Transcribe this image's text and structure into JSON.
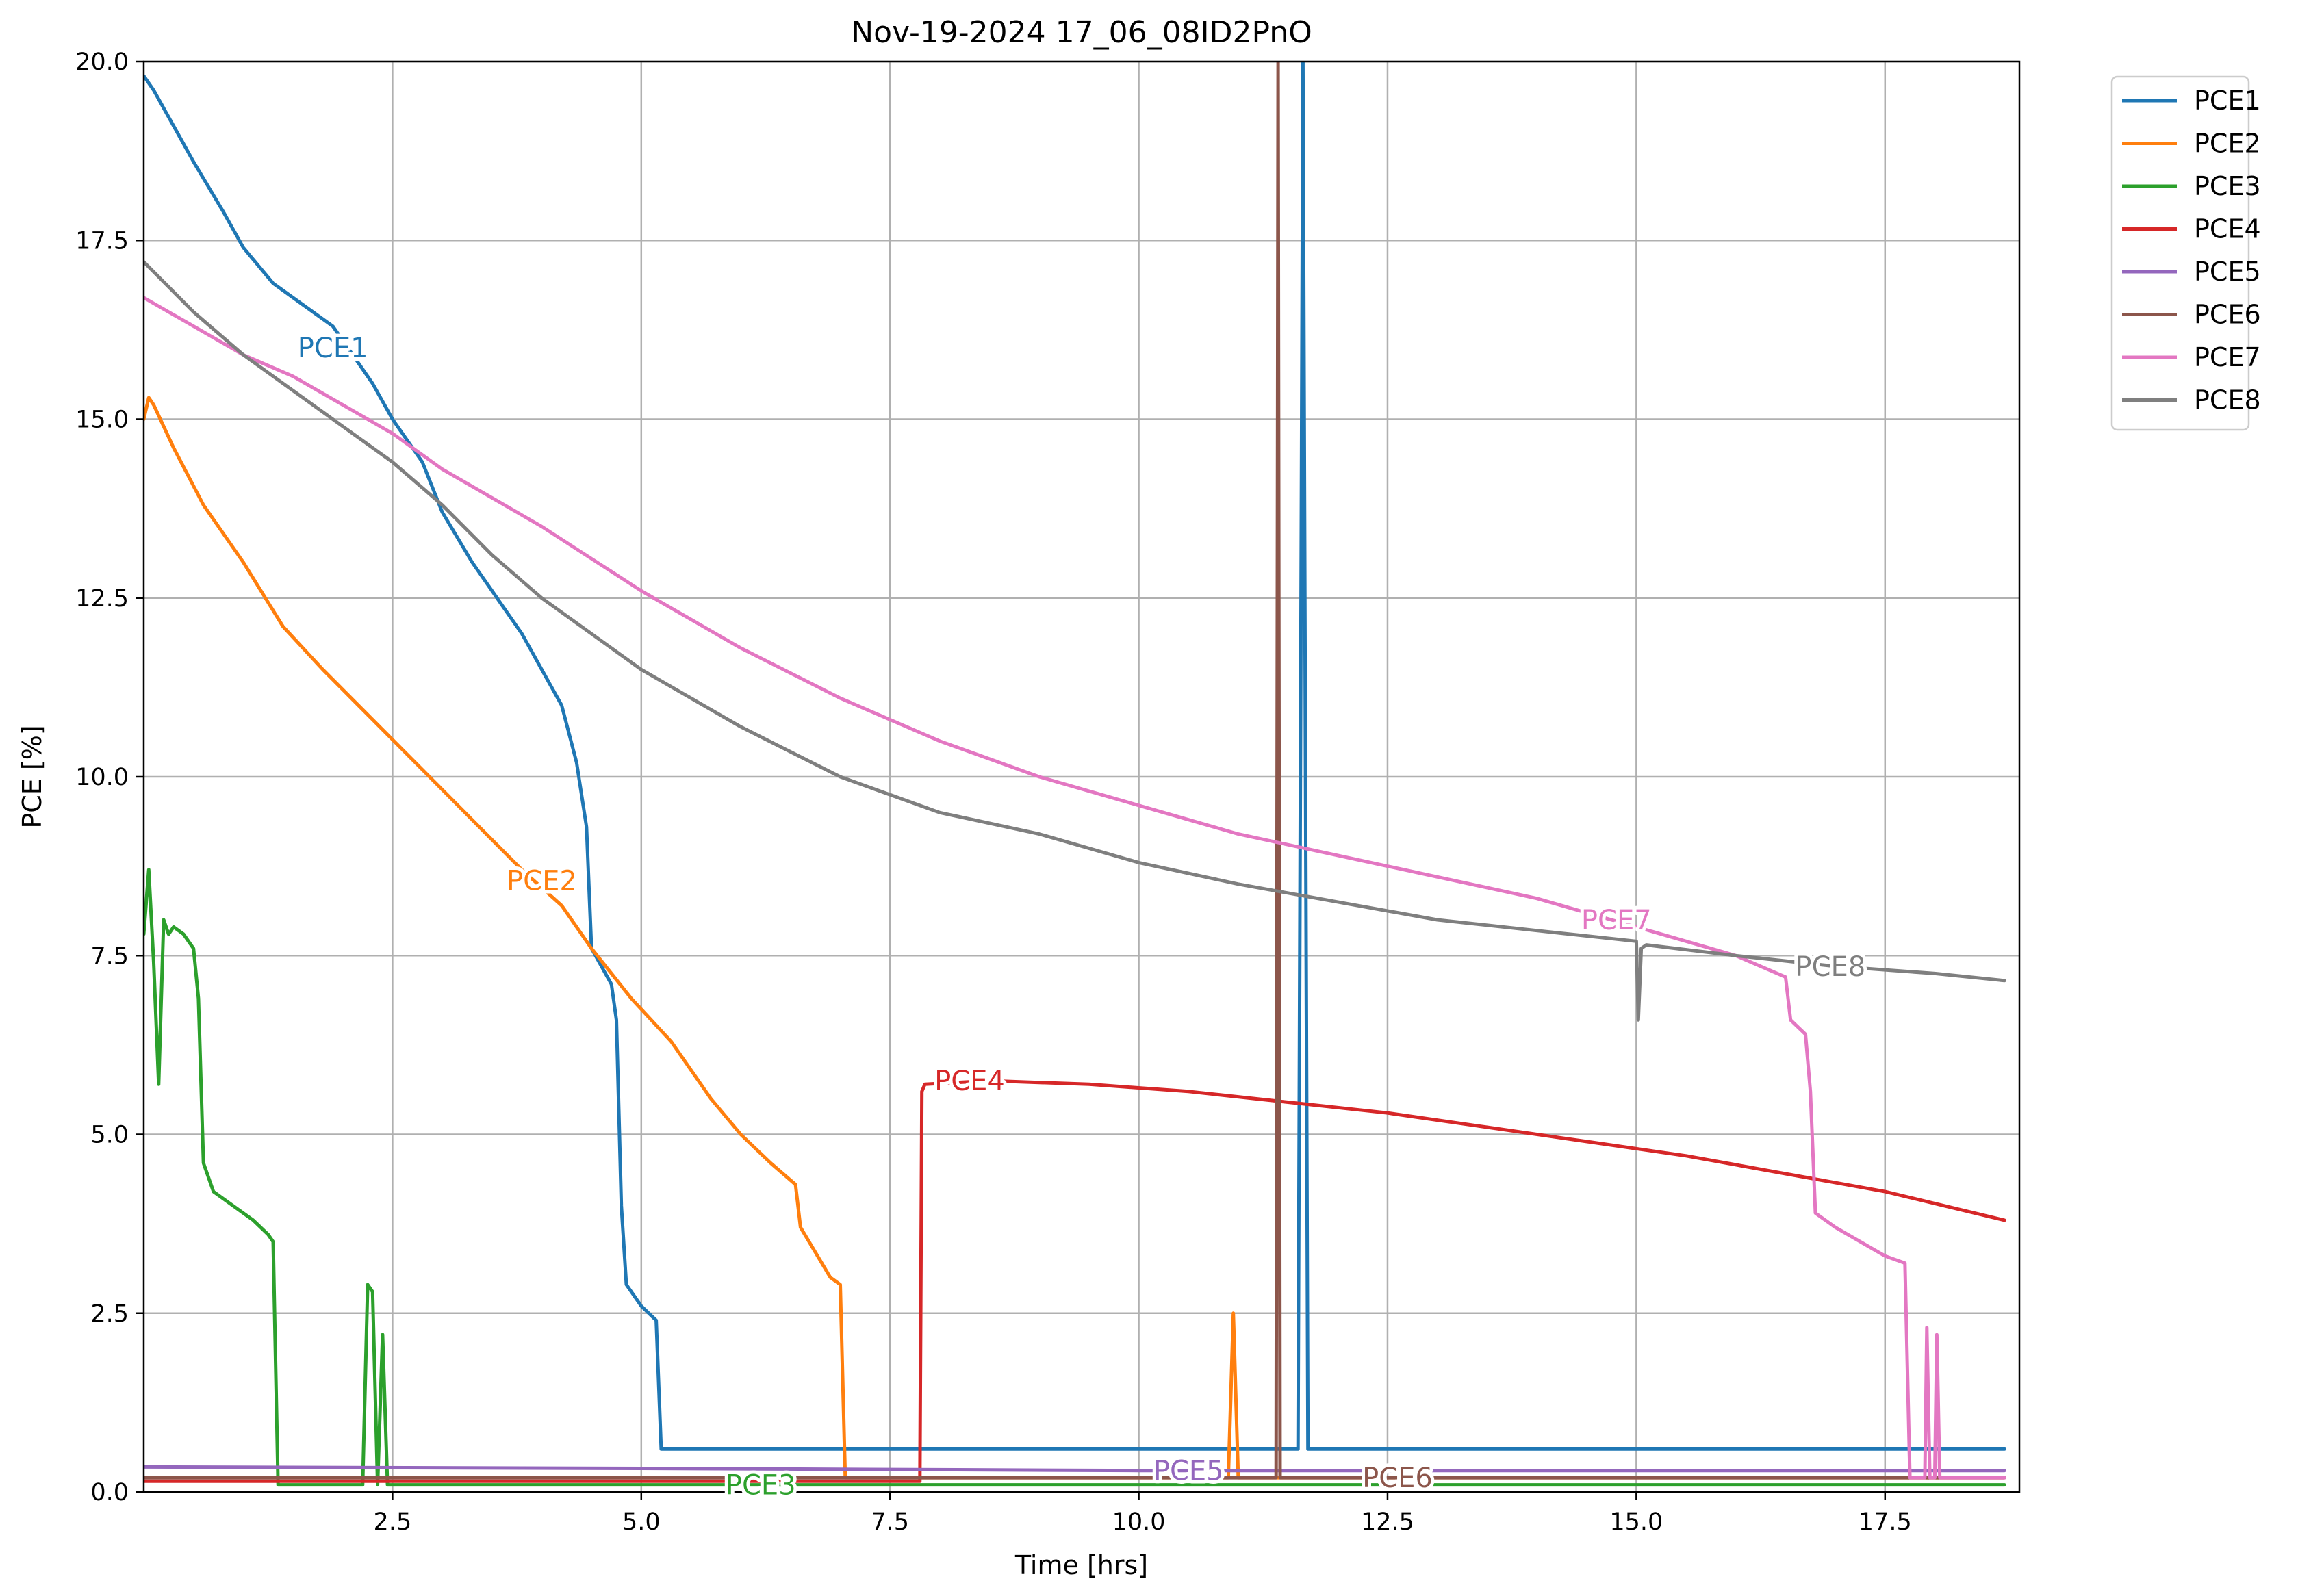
{
  "chart_data": {
    "type": "line",
    "title": "Nov-19-2024 17_06_08ID2PnO",
    "xlabel": "Time [hrs]",
    "ylabel": "PCE [%]",
    "xlim": [
      0,
      18.85
    ],
    "ylim": [
      0,
      20
    ],
    "x_ticks": [
      2.5,
      5.0,
      7.5,
      10.0,
      12.5,
      15.0,
      17.5
    ],
    "x_tick_labels": [
      "2.5",
      "5.0",
      "7.5",
      "10.0",
      "12.5",
      "15.0",
      "17.5"
    ],
    "y_ticks": [
      0,
      2.5,
      5,
      7.5,
      10,
      12.5,
      15,
      17.5,
      20
    ],
    "y_tick_labels": [
      "0.0",
      "2.5",
      "5.0",
      "7.5",
      "10.0",
      "12.5",
      "15.0",
      "17.5",
      "20.0"
    ],
    "grid": true,
    "legend_position": "outside-top-right",
    "series": [
      {
        "name": "PCE1",
        "color": "#1f77b4",
        "label_at": [
          1.9,
          16.0
        ],
        "x": [
          0.0,
          0.1,
          0.3,
          0.5,
          0.8,
          1.0,
          1.3,
          1.6,
          1.9,
          2.1,
          2.3,
          2.5,
          2.8,
          3.0,
          3.3,
          3.5,
          3.8,
          4.0,
          4.2,
          4.35,
          4.45,
          4.5,
          4.7,
          4.75,
          4.8,
          4.85,
          5.0,
          5.15,
          5.2,
          5.5,
          7.0,
          9.0,
          11.0,
          11.6,
          11.65,
          11.7,
          13.0,
          15.0,
          17.0,
          18.7
        ],
        "y": [
          19.8,
          19.6,
          19.1,
          18.6,
          17.9,
          17.4,
          16.9,
          16.6,
          16.3,
          15.9,
          15.5,
          15.0,
          14.4,
          13.7,
          13.0,
          12.6,
          12.0,
          11.5,
          11.0,
          10.2,
          9.3,
          7.6,
          7.1,
          6.6,
          4.0,
          2.9,
          2.6,
          2.4,
          0.6,
          0.6,
          0.6,
          0.6,
          0.6,
          0.6,
          20.0,
          0.6,
          0.6,
          0.6,
          0.6,
          0.6
        ]
      },
      {
        "name": "PCE2",
        "color": "#ff7f0e",
        "label_at": [
          4.0,
          8.55
        ],
        "x": [
          0.0,
          0.05,
          0.1,
          0.3,
          0.6,
          1.0,
          1.4,
          1.8,
          2.3,
          2.8,
          3.3,
          3.8,
          4.2,
          4.5,
          4.9,
          5.3,
          5.7,
          6.0,
          6.3,
          6.55,
          6.6,
          6.9,
          7.0,
          7.05,
          7.1,
          9.0,
          10.9,
          10.95,
          11.0,
          13.0,
          15.0,
          17.0,
          18.7
        ],
        "y": [
          15.0,
          15.3,
          15.2,
          14.6,
          13.8,
          13.0,
          12.1,
          11.5,
          10.8,
          10.1,
          9.4,
          8.7,
          8.2,
          7.6,
          6.9,
          6.3,
          5.5,
          5.0,
          4.6,
          4.3,
          3.7,
          3.0,
          2.9,
          0.2,
          0.2,
          0.2,
          0.2,
          2.5,
          0.2,
          0.2,
          0.2,
          0.2,
          0.2
        ]
      },
      {
        "name": "PCE3",
        "color": "#2ca02c",
        "label_at": [
          6.2,
          0.1
        ],
        "x": [
          0.0,
          0.05,
          0.1,
          0.15,
          0.2,
          0.25,
          0.3,
          0.4,
          0.5,
          0.55,
          0.6,
          0.65,
          0.7,
          0.9,
          1.1,
          1.25,
          1.3,
          1.35,
          2.2,
          2.25,
          2.3,
          2.35,
          2.4,
          2.45,
          3.0,
          5.0,
          7.0,
          9.0,
          12.0,
          15.0,
          18.7
        ],
        "y": [
          7.8,
          8.7,
          7.4,
          5.7,
          8.0,
          7.8,
          7.9,
          7.8,
          7.6,
          6.9,
          4.6,
          4.4,
          4.2,
          4.0,
          3.8,
          3.6,
          3.5,
          0.1,
          0.1,
          2.9,
          2.8,
          0.1,
          2.2,
          0.1,
          0.1,
          0.1,
          0.1,
          0.1,
          0.1,
          0.1,
          0.1
        ]
      },
      {
        "name": "PCE4",
        "color": "#d62728",
        "label_at": [
          8.3,
          5.75
        ],
        "x": [
          0.0,
          7.8,
          7.82,
          7.85,
          8.5,
          9.5,
          10.5,
          11.5,
          12.5,
          13.5,
          14.5,
          15.5,
          16.5,
          17.5,
          18.7
        ],
        "y": [
          0.15,
          0.15,
          5.6,
          5.7,
          5.75,
          5.7,
          5.6,
          5.45,
          5.3,
          5.1,
          4.9,
          4.7,
          4.45,
          4.2,
          3.8
        ]
      },
      {
        "name": "PCE5",
        "color": "#9467bd",
        "label_at": [
          10.5,
          0.3
        ],
        "x": [
          0.0,
          5.0,
          10.0,
          15.0,
          18.7
        ],
        "y": [
          0.35,
          0.33,
          0.3,
          0.3,
          0.3
        ]
      },
      {
        "name": "PCE6",
        "color": "#8c564b",
        "label_at": [
          12.6,
          0.2
        ],
        "x": [
          0.0,
          5.0,
          11.38,
          11.4,
          11.42,
          15.0,
          18.7
        ],
        "y": [
          0.2,
          0.2,
          0.2,
          20.0,
          0.2,
          0.2,
          0.2
        ]
      },
      {
        "name": "PCE7",
        "color": "#e377c2",
        "label_at": [
          14.8,
          8.0
        ],
        "x": [
          0.0,
          0.5,
          1.0,
          1.5,
          2.0,
          2.5,
          3.0,
          3.5,
          4.0,
          5.0,
          6.0,
          7.0,
          8.0,
          9.0,
          10.0,
          11.0,
          12.0,
          13.0,
          14.0,
          14.5,
          15.0,
          15.5,
          16.0,
          16.5,
          16.55,
          16.7,
          16.75,
          16.8,
          17.0,
          17.5,
          17.7,
          17.75,
          17.9,
          17.92,
          17.95,
          18.0,
          18.02,
          18.05,
          18.7
        ],
        "y": [
          16.7,
          16.3,
          15.9,
          15.6,
          15.2,
          14.8,
          14.3,
          13.9,
          13.5,
          12.6,
          11.8,
          11.1,
          10.5,
          10.0,
          9.6,
          9.2,
          8.9,
          8.6,
          8.3,
          8.1,
          7.9,
          7.7,
          7.5,
          7.2,
          6.6,
          6.4,
          5.6,
          3.9,
          3.7,
          3.3,
          3.2,
          0.2,
          0.2,
          2.3,
          0.2,
          0.2,
          2.2,
          0.2,
          0.2
        ]
      },
      {
        "name": "PCE8",
        "color": "#7f7f7f",
        "label_at": [
          16.95,
          7.35
        ],
        "x": [
          0.0,
          0.5,
          1.0,
          1.5,
          2.0,
          2.5,
          3.0,
          3.5,
          4.0,
          5.0,
          6.0,
          7.0,
          8.0,
          9.0,
          10.0,
          11.0,
          12.0,
          13.0,
          14.0,
          15.0,
          15.02,
          15.05,
          15.1,
          16.0,
          17.0,
          18.0,
          18.7
        ],
        "y": [
          17.2,
          16.5,
          15.9,
          15.4,
          14.9,
          14.4,
          13.8,
          13.1,
          12.5,
          11.5,
          10.7,
          10.0,
          9.5,
          9.2,
          8.8,
          8.5,
          8.25,
          8.0,
          7.85,
          7.7,
          6.6,
          7.6,
          7.65,
          7.5,
          7.35,
          7.25,
          7.15
        ]
      }
    ]
  }
}
